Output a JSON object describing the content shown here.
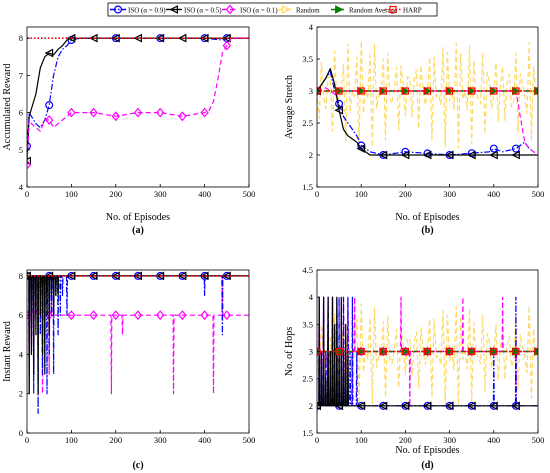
{
  "legend": {
    "entries": [
      {
        "label": "ISO (α = 0.9)",
        "color": "#0000ff",
        "dash": "dashdot",
        "marker": "circle"
      },
      {
        "label": "ISO (α = 0.5)",
        "color": "#000000",
        "dash": "solid",
        "marker": "triangle-left"
      },
      {
        "label": "ISO (α = 0.1)",
        "color": "#ff00ff",
        "dash": "dashed",
        "marker": "diamond"
      },
      {
        "label": "Random",
        "color": "#ffd966",
        "dash": "dashed",
        "marker": "triangle-right"
      },
      {
        "label": "Random Average",
        "color": "#008000",
        "dash": "dashed",
        "marker": "triangle-right-filled"
      },
      {
        "label": "HARP",
        "color": "#ff0000",
        "dash": "dotted",
        "marker": "square"
      }
    ]
  },
  "chart_data": [
    {
      "id": "a",
      "caption": "(a)",
      "type": "line",
      "xlabel": "No. of Episodes",
      "ylabel": "Accumulated Reward",
      "xlim": [
        0,
        500
      ],
      "ylim": [
        4,
        8.3
      ],
      "xticks": [
        "0",
        "100",
        "200",
        "300",
        "400",
        "500"
      ],
      "xtick_values": [
        0,
        100,
        200,
        300,
        400,
        500
      ],
      "yticks": [
        "4",
        "5",
        "6",
        "7",
        "8"
      ],
      "ytick_values": [
        4,
        5,
        6,
        7,
        8
      ],
      "grid": false,
      "series": [
        {
          "name": "ISO (α = 0.9)",
          "x": [
            0,
            5,
            10,
            20,
            30,
            40,
            50,
            60,
            70,
            80,
            90,
            100,
            120,
            150,
            200,
            300,
            400,
            440,
            450,
            500
          ],
          "y": [
            5.1,
            6.0,
            5.9,
            5.7,
            5.6,
            5.8,
            6.2,
            7.0,
            7.5,
            7.7,
            7.8,
            7.95,
            8,
            8,
            8,
            8,
            8,
            7.95,
            8,
            8
          ],
          "marker_x": [
            0,
            50,
            100,
            200,
            300,
            400,
            450
          ]
        },
        {
          "name": "ISO (α = 0.5)",
          "x": [
            0,
            5,
            10,
            20,
            30,
            40,
            50,
            60,
            70,
            80,
            90,
            100,
            150,
            200,
            300,
            400,
            500
          ],
          "y": [
            4.7,
            5.9,
            6.1,
            6.5,
            7.2,
            7.5,
            7.6,
            7.55,
            7.7,
            7.8,
            7.95,
            8,
            8,
            8,
            8,
            8,
            8
          ],
          "marker_x": [
            0,
            50,
            100,
            150,
            200,
            250,
            300,
            350,
            400,
            450
          ]
        },
        {
          "name": "ISO (α = 0.1)",
          "x": [
            0,
            5,
            10,
            20,
            30,
            40,
            50,
            60,
            70,
            80,
            100,
            150,
            200,
            250,
            300,
            350,
            400,
            410,
            420,
            430,
            440,
            450,
            460,
            500
          ],
          "y": [
            4.6,
            5.8,
            5.7,
            5.6,
            5.5,
            5.8,
            5.8,
            5.6,
            5.7,
            5.8,
            6.0,
            6.0,
            5.9,
            6.0,
            6.0,
            5.9,
            6.0,
            6.05,
            6.3,
            6.9,
            7.6,
            7.8,
            8,
            8
          ],
          "marker_x": [
            0,
            50,
            100,
            150,
            200,
            250,
            300,
            350,
            400,
            450
          ]
        },
        {
          "name": "HARP",
          "x": [
            0,
            500
          ],
          "y": [
            8,
            8
          ],
          "marker_x": []
        }
      ]
    },
    {
      "id": "b",
      "caption": "(b)",
      "type": "line",
      "xlabel": "No. of Episodes",
      "ylabel": "Average Stretch",
      "xlim": [
        0,
        500
      ],
      "ylim": [
        1.5,
        4
      ],
      "xticks": [
        "0",
        "100",
        "200",
        "300",
        "400",
        "500"
      ],
      "xtick_values": [
        0,
        100,
        200,
        300,
        400,
        500
      ],
      "yticks": [
        "1.5",
        "2",
        "2.5",
        "3",
        "3.5",
        "4"
      ],
      "ytick_values": [
        1.5,
        2,
        2.5,
        3,
        3.5,
        4
      ],
      "grid": false,
      "series": [
        {
          "name": "Random",
          "pattern": "oscillating",
          "center": 3.0,
          "amplitude": 0.9,
          "step": 5,
          "marker_x": [
            0,
            50,
            100,
            150,
            200,
            250,
            300,
            350,
            400,
            450,
            500
          ]
        },
        {
          "name": "ISO (α = 0.9)",
          "x": [
            0,
            10,
            20,
            30,
            40,
            50,
            60,
            70,
            80,
            90,
            100,
            120,
            150,
            200,
            300,
            390,
            400,
            420,
            450,
            460,
            470,
            480,
            490
          ],
          "y": [
            3.0,
            3.1,
            3.2,
            3.3,
            3.0,
            2.8,
            2.6,
            2.5,
            2.4,
            2.3,
            2.15,
            2.05,
            2.0,
            2.05,
            2.0,
            2.05,
            2.1,
            2.05,
            2.1,
            2.15,
            2.2,
            2.1,
            2.05
          ],
          "marker_x": [
            0,
            50,
            100,
            150,
            200,
            250,
            300,
            350,
            400,
            450
          ]
        },
        {
          "name": "ISO (α = 0.5)",
          "x": [
            0,
            10,
            20,
            30,
            40,
            50,
            60,
            70,
            80,
            90,
            100,
            120,
            150,
            500
          ],
          "y": [
            3.0,
            3.1,
            3.2,
            3.35,
            3.1,
            2.7,
            2.4,
            2.3,
            2.25,
            2.2,
            2.1,
            2.0,
            2.0,
            2.0
          ],
          "marker_x": [
            0,
            50,
            100,
            150,
            200,
            250,
            300,
            350,
            400,
            450
          ]
        },
        {
          "name": "ISO (α = 0.1)",
          "x": [
            0,
            20,
            40,
            60,
            80,
            100,
            150,
            200,
            250,
            300,
            350,
            400,
            450,
            470,
            480,
            490,
            500
          ],
          "y": [
            3.0,
            3.05,
            2.95,
            3.0,
            3.0,
            3.0,
            3.0,
            3.0,
            3.0,
            3.0,
            3.0,
            3.0,
            3.0,
            2.2,
            2.1,
            2.05,
            2.0
          ],
          "marker_x": []
        },
        {
          "name": "Random Average",
          "x": [
            0,
            500
          ],
          "y": [
            3.0,
            3.0
          ],
          "marker_x": [
            0,
            50,
            100,
            150,
            200,
            250,
            300,
            350,
            400,
            450,
            500
          ]
        },
        {
          "name": "HARP",
          "x": [
            0,
            500
          ],
          "y": [
            3.0,
            3.0
          ],
          "marker_x": [
            0,
            50,
            100,
            150,
            200,
            250,
            300,
            350,
            400,
            450,
            500
          ]
        }
      ]
    },
    {
      "id": "c",
      "caption": "(c)",
      "type": "line",
      "xlabel": "",
      "ylabel": "Instant Reward",
      "xlim": [
        0,
        500
      ],
      "ylim": [
        0,
        8.3
      ],
      "xticks": [
        "0",
        "100",
        "200",
        "300",
        "400",
        "500"
      ],
      "xtick_values": [
        0,
        100,
        200,
        300,
        400,
        500
      ],
      "yticks": [
        "0",
        "2",
        "4",
        "6",
        "8"
      ],
      "ytick_values": [
        0,
        2,
        4,
        6,
        8
      ],
      "grid": false,
      "series": [
        {
          "name": "ISO (α = 0.1)",
          "pattern": "spiky",
          "base": 6,
          "spike_x": [
            5,
            10,
            15,
            20,
            25,
            30,
            35,
            40,
            45,
            50,
            55,
            190,
            215,
            330,
            420,
            440
          ],
          "spike_y": [
            2,
            8,
            3,
            8,
            5,
            7,
            2,
            8,
            6,
            3,
            7,
            2,
            5,
            2,
            2,
            8
          ],
          "marker_x": [
            0,
            50,
            100,
            150,
            200,
            250,
            300,
            350,
            400,
            450
          ]
        },
        {
          "name": "ISO (α = 0.9)",
          "pattern": "spiky",
          "base": 8,
          "spike_x": [
            5,
            10,
            15,
            20,
            25,
            30,
            35,
            40,
            45,
            50,
            55,
            60,
            65,
            70,
            75,
            80,
            90,
            400,
            440
          ],
          "spike_y": [
            3,
            6,
            2,
            7,
            1,
            5,
            3,
            6,
            2,
            4,
            6,
            3,
            7,
            5,
            6,
            7,
            6,
            7,
            5
          ],
          "marker_x": [
            0,
            50,
            100,
            150,
            200,
            250,
            300,
            350,
            400,
            450
          ]
        },
        {
          "name": "ISO (α = 0.5)",
          "pattern": "spiky",
          "base": 8,
          "spike_x": [
            5,
            10,
            15,
            20,
            25,
            30,
            35,
            40,
            45,
            50,
            55,
            60,
            65,
            70
          ],
          "spike_y": [
            2,
            4,
            3,
            5,
            2,
            6,
            4,
            3,
            6,
            5,
            7,
            6,
            7,
            7
          ],
          "marker_x": [
            0,
            50,
            100,
            150,
            200,
            250,
            300,
            350,
            400,
            450
          ]
        },
        {
          "name": "HARP",
          "x": [
            0,
            500
          ],
          "y": [
            8,
            8
          ],
          "marker_x": []
        }
      ]
    },
    {
      "id": "d",
      "caption": "(d)",
      "type": "line",
      "xlabel": "No. of Episodes",
      "ylabel": "No. of Hops",
      "xlim": [
        0,
        500
      ],
      "ylim": [
        1.5,
        4.5
      ],
      "xticks": [
        "0",
        "100",
        "200",
        "300",
        "400",
        "500"
      ],
      "xtick_values": [
        0,
        100,
        200,
        300,
        400,
        500
      ],
      "yticks": [
        "1.5",
        "2",
        "2.5",
        "3",
        "3.5",
        "4",
        "4.5"
      ],
      "ytick_values": [
        1.5,
        2,
        2.5,
        3,
        3.5,
        4,
        4.5
      ],
      "grid": false,
      "series": [
        {
          "name": "Random",
          "pattern": "oscillating",
          "center": 3.0,
          "amplitude": 1.0,
          "step": 5,
          "marker_x": [
            0,
            50,
            100,
            150,
            200,
            250,
            300,
            350,
            400,
            450,
            500
          ]
        },
        {
          "name": "ISO (α = 0.1)",
          "pattern": "spiky",
          "base": 3,
          "spike_x": [
            5,
            10,
            15,
            20,
            25,
            30,
            35,
            40,
            45,
            50,
            55,
            60,
            65,
            70,
            75,
            80,
            85,
            190,
            210,
            330,
            420,
            450
          ],
          "spike_y": [
            4,
            2,
            4,
            2,
            4,
            2,
            4,
            2,
            4,
            3,
            2,
            4,
            2,
            4,
            3,
            2,
            4,
            4,
            2,
            4,
            4,
            2
          ],
          "marker_x": [
            0,
            50,
            100,
            150,
            200,
            250,
            300,
            350,
            400,
            450
          ]
        },
        {
          "name": "ISO (α = 0.9)",
          "pattern": "spiky",
          "base": 2,
          "spike_x": [
            5,
            10,
            15,
            20,
            25,
            30,
            35,
            40,
            45,
            50,
            55,
            60,
            65,
            70,
            75,
            80,
            90,
            400,
            450
          ],
          "spike_y": [
            4,
            3,
            4,
            3,
            4,
            3,
            4,
            3,
            4,
            4,
            3,
            4,
            3,
            4,
            3,
            4,
            3,
            3,
            4
          ],
          "marker_x": [
            0,
            50,
            100,
            150,
            200,
            250,
            300,
            350,
            400,
            450
          ]
        },
        {
          "name": "ISO (α = 0.5)",
          "pattern": "spiky",
          "base": 2,
          "spike_x": [
            5,
            10,
            15,
            20,
            25,
            30,
            35,
            40,
            45,
            50,
            55,
            60,
            65,
            70
          ],
          "spike_y": [
            4,
            3,
            4,
            2.5,
            4,
            3,
            4,
            3.5,
            4,
            3,
            4,
            3,
            3.5,
            3
          ],
          "marker_x": [
            0,
            50,
            100,
            150,
            200,
            250,
            300,
            350,
            400,
            450
          ]
        },
        {
          "name": "Random Average",
          "x": [
            0,
            500
          ],
          "y": [
            3.0,
            3.0
          ],
          "marker_x": [
            0,
            50,
            100,
            150,
            200,
            250,
            300,
            350,
            400,
            450,
            500
          ]
        },
        {
          "name": "HARP",
          "x": [
            0,
            500
          ],
          "y": [
            3.0,
            3.0
          ],
          "marker_x": [
            0,
            50,
            100,
            150,
            200,
            250,
            300,
            350,
            400,
            450,
            500
          ]
        }
      ]
    }
  ]
}
